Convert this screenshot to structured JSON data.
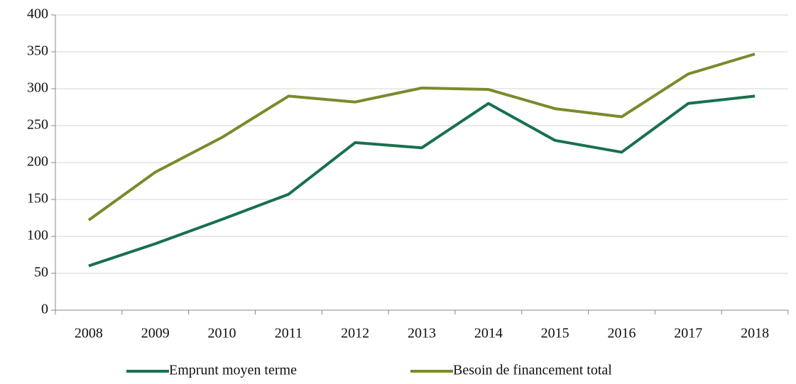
{
  "chart_data": {
    "type": "line",
    "categories": [
      "2008",
      "2009",
      "2010",
      "2011",
      "2012",
      "2013",
      "2014",
      "2015",
      "2016",
      "2017",
      "2018"
    ],
    "series": [
      {
        "name": "Emprunt moyen terme",
        "color": "#18704e",
        "values": [
          60,
          90,
          123,
          157,
          227,
          220,
          280,
          230,
          214,
          280,
          290
        ]
      },
      {
        "name": "Besoin de financement total",
        "color": "#7a8a2c",
        "values": [
          122,
          187,
          234,
          290,
          282,
          301,
          299,
          273,
          262,
          320,
          347
        ]
      }
    ],
    "ylim": [
      0,
      400
    ],
    "yticks": [
      0,
      50,
      100,
      150,
      200,
      250,
      300,
      350,
      400
    ],
    "grid": true,
    "legend": "bottom"
  }
}
